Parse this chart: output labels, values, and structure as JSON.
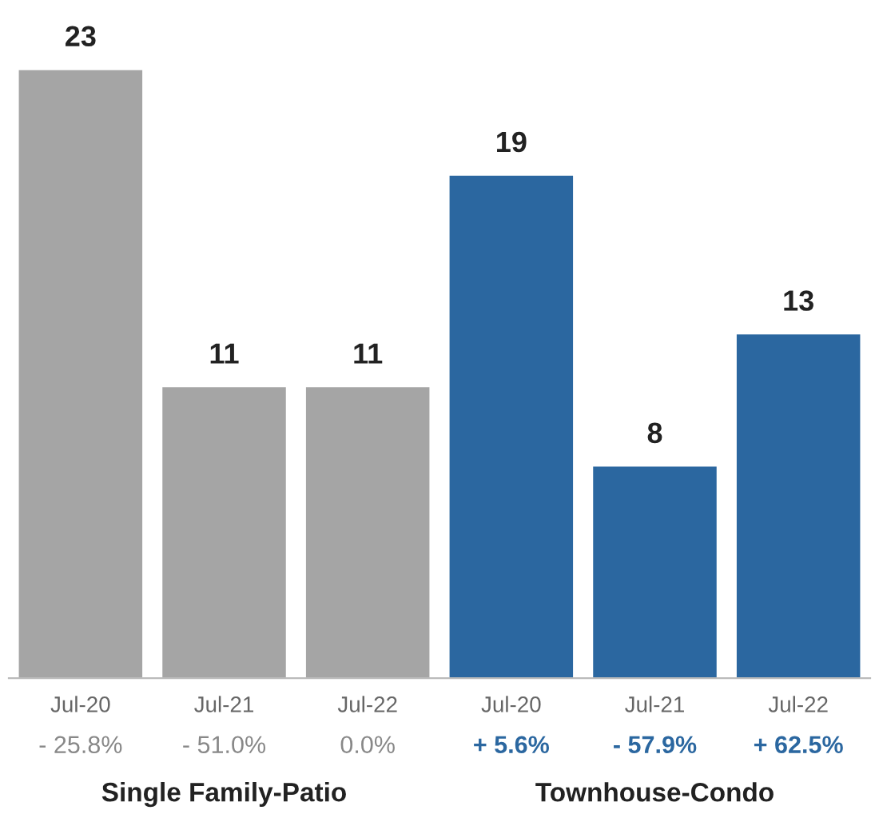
{
  "chart_data": {
    "type": "bar",
    "categories": [
      "Jul-20",
      "Jul-21",
      "Jul-22",
      "Jul-20",
      "Jul-21",
      "Jul-22"
    ],
    "values": [
      23,
      11,
      11,
      19,
      8,
      13
    ],
    "colors": [
      "#a5a5a5",
      "#a5a5a5",
      "#a5a5a5",
      "#2b67a0",
      "#2b67a0",
      "#2b67a0"
    ],
    "data_labels": true,
    "annotations": [
      "- 25.8%",
      "- 51.0%",
      "0.0%",
      "+ 5.6%",
      "- 57.9%",
      "+ 62.5%",
      "Single Family-Patio",
      "Townhouse-Condo"
    ]
  }
}
